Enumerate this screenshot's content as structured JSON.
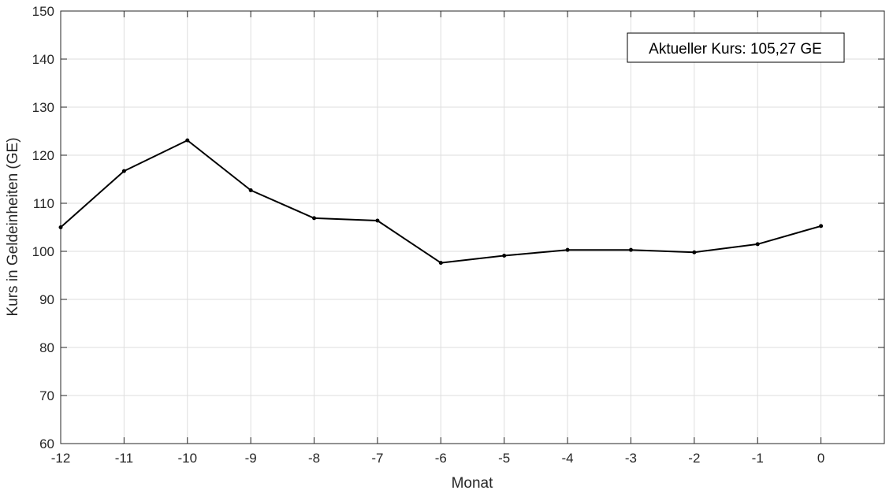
{
  "chart_data": {
    "type": "line",
    "title": "",
    "xlabel": "Monat",
    "ylabel": "Kurs in Geldeinheiten (GE)",
    "xlim": [
      -12,
      1
    ],
    "ylim": [
      60,
      150
    ],
    "x_ticks": [
      -12,
      -11,
      -10,
      -9,
      -8,
      -7,
      -6,
      -5,
      -4,
      -3,
      -2,
      -1,
      0
    ],
    "y_ticks": [
      60,
      70,
      80,
      90,
      100,
      110,
      120,
      130,
      140,
      150
    ],
    "grid": true,
    "series": [
      {
        "x": [
          -12,
          -11,
          -10,
          -9,
          -8,
          -7,
          -6,
          -5,
          -4,
          -3,
          -2,
          -1,
          0
        ],
        "values": [
          105.0,
          116.7,
          123.1,
          112.7,
          106.9,
          106.4,
          97.6,
          99.1,
          100.3,
          100.3,
          99.8,
          101.5,
          105.27
        ],
        "color": "#000000",
        "marker": "dot"
      }
    ],
    "annotation": {
      "text": "Aktueller Kurs: 105,27 GE",
      "placement": "top-right"
    }
  }
}
